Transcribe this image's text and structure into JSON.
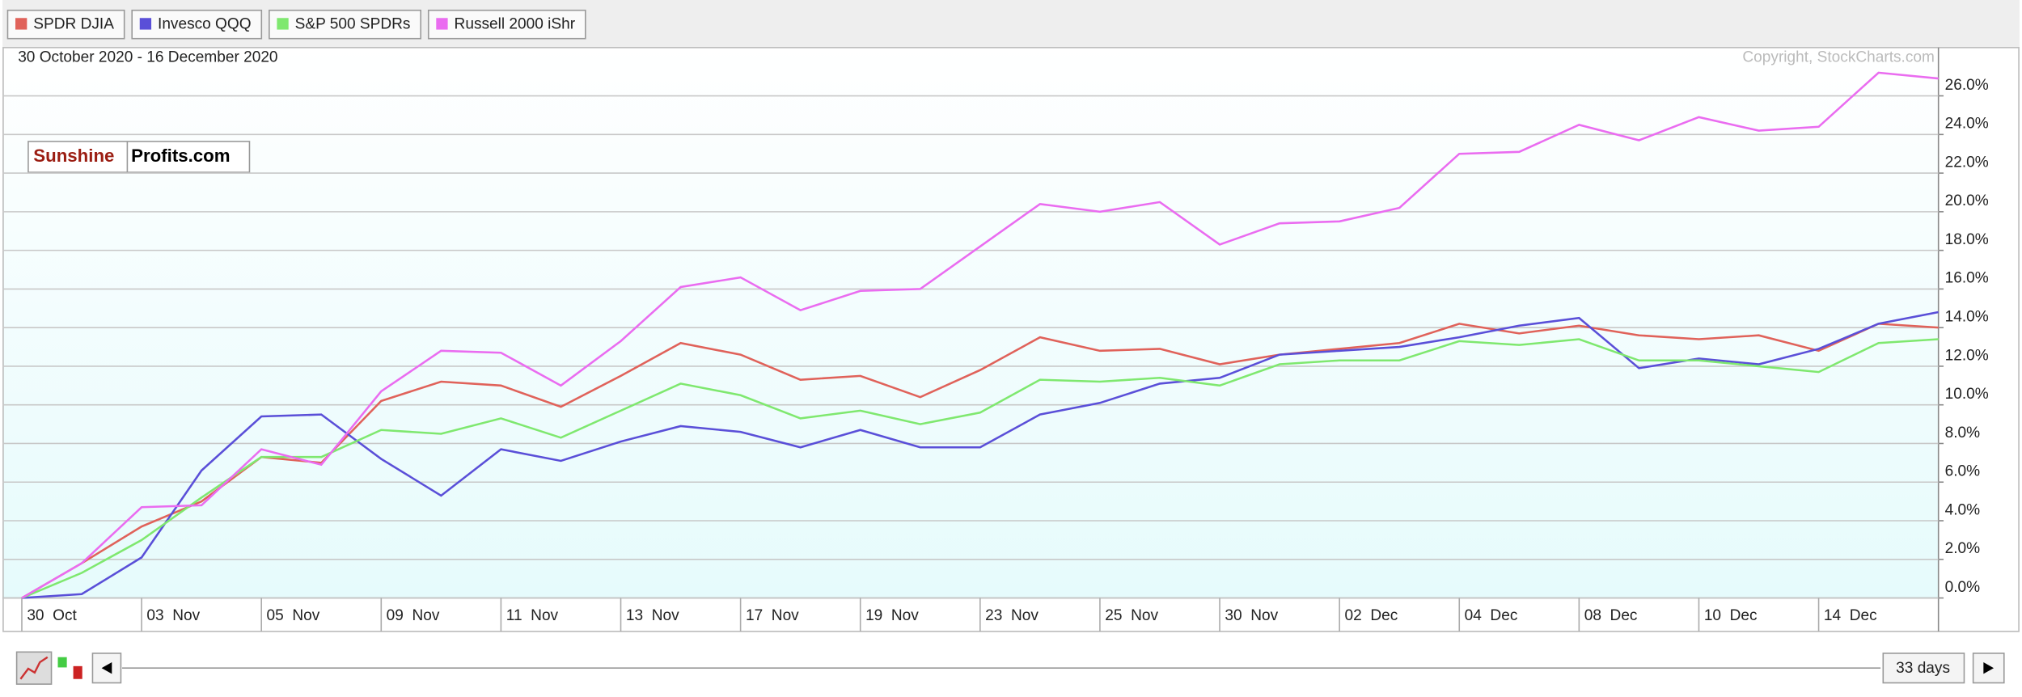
{
  "chart_data": {
    "type": "line",
    "subtitle": "30 October 2020 - 16 December 2020",
    "credit": "Copyright, StockCharts.com",
    "logo": [
      "Sunshine",
      "Profits.com"
    ],
    "range_label": "33 days",
    "categories": [
      "30  Oct",
      null,
      "03  Nov",
      null,
      "05  Nov",
      null,
      "09  Nov",
      null,
      "11  Nov",
      null,
      "13  Nov",
      null,
      "17  Nov",
      null,
      "19  Nov",
      null,
      "23  Nov",
      null,
      "25  Nov",
      null,
      "30  Nov",
      null,
      "02  Dec",
      null,
      "04  Dec",
      null,
      "08  Dec",
      null,
      "10  Dec",
      null,
      "14  Dec",
      null,
      null
    ],
    "ylim": [
      0,
      28.5
    ],
    "yticks": [
      {
        "value": 0,
        "label": "0.0%"
      },
      {
        "value": 2,
        "label": "2.0%"
      },
      {
        "value": 4,
        "label": "4.0%"
      },
      {
        "value": 6,
        "label": "6.0%"
      },
      {
        "value": 8,
        "label": "8.0%"
      },
      {
        "value": 10,
        "label": "10.0%"
      },
      {
        "value": 12,
        "label": "12.0%"
      },
      {
        "value": 14,
        "label": "14.0%"
      },
      {
        "value": 16,
        "label": "16.0%"
      },
      {
        "value": 18,
        "label": "18.0%"
      },
      {
        "value": 20,
        "label": "20.0%"
      },
      {
        "value": 22,
        "label": "22.0%"
      },
      {
        "value": 24,
        "label": "24.0%"
      },
      {
        "value": 26,
        "label": "26.0%"
      }
    ],
    "grid": true,
    "series": [
      {
        "name": "SPDR DJIA",
        "color": "#e0625a",
        "values": [
          0,
          1.8,
          3.7,
          5.0,
          7.3,
          7.0,
          10.2,
          11.2,
          11.0,
          9.9,
          11.5,
          13.2,
          12.6,
          11.3,
          11.5,
          10.4,
          11.8,
          13.5,
          12.8,
          12.9,
          12.1,
          12.6,
          12.9,
          13.2,
          14.2,
          13.7,
          14.1,
          13.6,
          13.4,
          13.6,
          12.8,
          14.2,
          14.0
        ]
      },
      {
        "name": "Invesco QQQ",
        "color": "#5a4fd8",
        "values": [
          0,
          0.2,
          2.1,
          6.6,
          9.4,
          9.5,
          7.2,
          5.3,
          7.7,
          7.1,
          8.1,
          8.9,
          8.6,
          7.8,
          8.7,
          7.8,
          7.8,
          9.5,
          10.1,
          11.1,
          11.4,
          12.6,
          12.8,
          13.0,
          13.5,
          14.1,
          14.5,
          11.9,
          12.4,
          12.1,
          12.9,
          14.2,
          14.8
        ]
      },
      {
        "name": "S&P 500 SPDRs",
        "color": "#7fe86f",
        "values": [
          0,
          1.3,
          3.0,
          5.2,
          7.3,
          7.3,
          8.7,
          8.5,
          9.3,
          8.3,
          9.7,
          11.1,
          10.5,
          9.3,
          9.7,
          9.0,
          9.6,
          11.3,
          11.2,
          11.4,
          11.0,
          12.1,
          12.3,
          12.3,
          13.3,
          13.1,
          13.4,
          12.3,
          12.3,
          12.0,
          11.7,
          13.2,
          13.4
        ]
      },
      {
        "name": "Russell 2000 iShr",
        "color": "#ea6cf0",
        "values": [
          0,
          1.8,
          4.7,
          4.8,
          7.7,
          6.9,
          10.7,
          12.8,
          12.7,
          11.0,
          13.3,
          16.1,
          16.6,
          14.9,
          15.9,
          16.0,
          18.2,
          20.4,
          20.0,
          20.5,
          18.3,
          19.4,
          19.5,
          20.2,
          23.0,
          23.1,
          24.5,
          23.7,
          24.9,
          24.2,
          24.4,
          27.2,
          26.9
        ]
      }
    ]
  }
}
